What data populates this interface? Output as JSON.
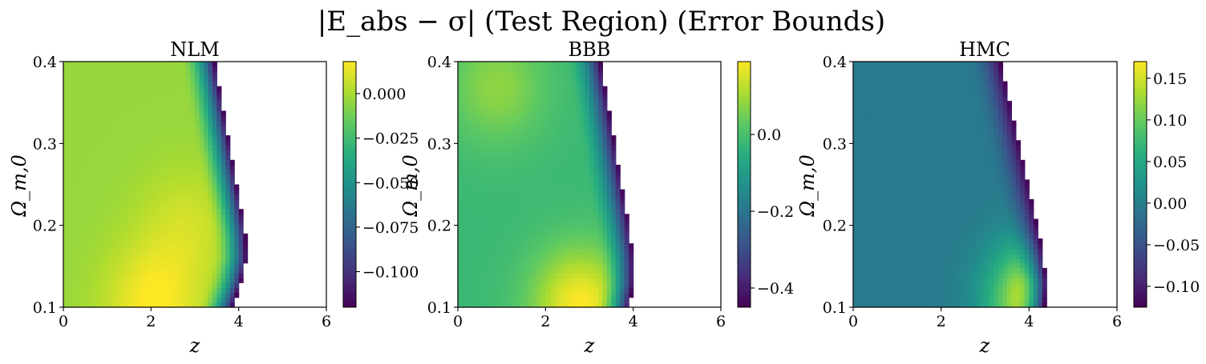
{
  "chart_data": {
    "title": "|E_abs − σ| (Test Region) (Error Bounds)",
    "type": "heatmap",
    "colormap": "viridis",
    "panels": [
      {
        "title": "NLM",
        "xlabel": "z",
        "ylabel": "Ω_m,0",
        "xlim": [
          0,
          6
        ],
        "ylim": [
          0.1,
          0.4
        ],
        "xticks": [
          "0",
          "2",
          "4",
          "6"
        ],
        "yticks": [
          "0.1",
          "0.2",
          "0.3",
          "0.4"
        ],
        "colorbar": {
          "min": -0.12,
          "max": 0.018,
          "ticks": [
            0.0,
            -0.025,
            -0.05,
            -0.075,
            -0.1
          ],
          "ticklabels": [
            "0.000",
            "−0.025",
            "−0.050",
            "−0.075",
            "−0.100"
          ]
        },
        "boundary": [
          [
            3.45,
            0.4
          ],
          [
            3.65,
            0.34
          ],
          [
            3.85,
            0.28
          ],
          [
            4.05,
            0.22
          ],
          [
            4.15,
            0.19
          ],
          [
            4.18,
            0.16
          ],
          [
            4.05,
            0.13
          ],
          [
            3.85,
            0.1
          ]
        ],
        "field": {
          "base": -0.004,
          "hotspots": [
            {
              "z": 2.05,
              "om": 0.105,
              "value": 0.018
            },
            {
              "z": 2.8,
              "om": 0.2,
              "value": 0.008
            }
          ],
          "edge_low": -0.12
        }
      },
      {
        "title": "BBB",
        "xlabel": "z",
        "ylabel": "Ω_m,0",
        "xlim": [
          0,
          6
        ],
        "ylim": [
          0.1,
          0.4
        ],
        "xticks": [
          "0",
          "2",
          "4",
          "6"
        ],
        "yticks": [
          "0.1",
          "0.2",
          "0.3",
          "0.4"
        ],
        "colorbar": {
          "min": -0.45,
          "max": 0.19,
          "ticks": [
            0.0,
            -0.2,
            -0.4
          ],
          "ticklabels": [
            "0.0",
            "−0.2",
            "−0.4"
          ]
        },
        "boundary": [
          [
            3.25,
            0.4
          ],
          [
            3.45,
            0.34
          ],
          [
            3.7,
            0.26
          ],
          [
            3.9,
            0.2
          ],
          [
            4.0,
            0.16
          ],
          [
            4.0,
            0.13
          ],
          [
            3.9,
            0.1
          ]
        ],
        "field": {
          "base": -0.02,
          "hotspots": [
            {
              "z": 2.8,
              "om": 0.103,
              "value": 0.19
            },
            {
              "z": 0.9,
              "om": 0.37,
              "value": 0.08
            }
          ],
          "edge_low": -0.45
        }
      },
      {
        "title": "HMC",
        "xlabel": "z",
        "ylabel": "Ω_m,0",
        "xlim": [
          0,
          6
        ],
        "ylim": [
          0.1,
          0.4
        ],
        "xticks": [
          "0",
          "2",
          "4",
          "6"
        ],
        "yticks": [
          "0.1",
          "0.2",
          "0.3",
          "0.4"
        ],
        "colorbar": {
          "min": -0.125,
          "max": 0.17,
          "ticks": [
            0.15,
            0.1,
            0.05,
            0.0,
            -0.05,
            -0.1
          ],
          "ticklabels": [
            "0.15",
            "0.10",
            "0.05",
            "0.00",
            "−0.05",
            "−0.10"
          ]
        },
        "boundary": [
          [
            3.35,
            0.4
          ],
          [
            3.6,
            0.34
          ],
          [
            3.9,
            0.27
          ],
          [
            4.1,
            0.22
          ],
          [
            4.3,
            0.17
          ],
          [
            4.4,
            0.13
          ],
          [
            4.35,
            0.1
          ]
        ],
        "field": {
          "base": -0.005,
          "hotspots": [
            {
              "z": 4.2,
              "om": 0.11,
              "value": 0.17
            }
          ],
          "edge_low": -0.125
        }
      }
    ]
  }
}
